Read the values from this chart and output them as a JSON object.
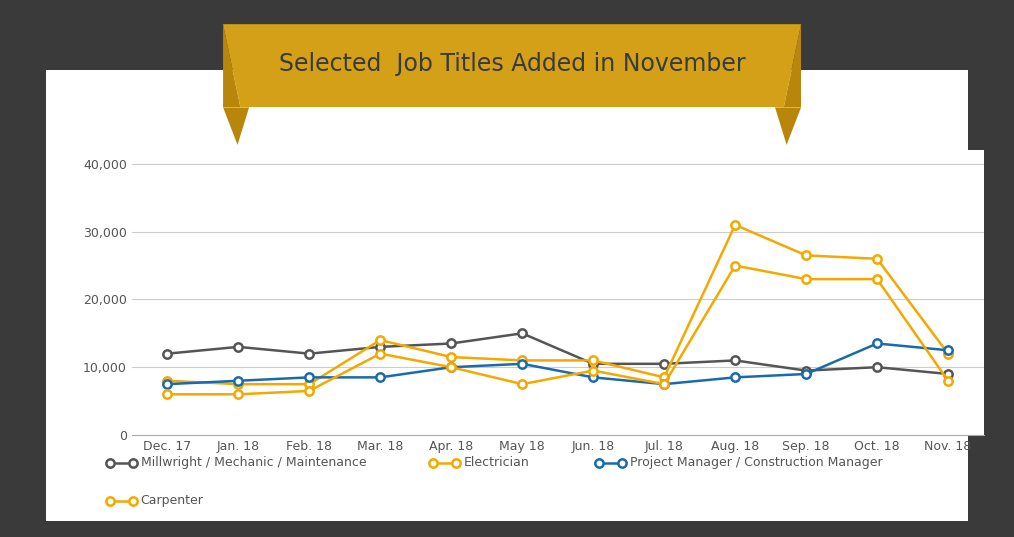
{
  "title": "Selected  Job Titles Added in November",
  "x_labels": [
    "Dec. 17",
    "Jan. 18",
    "Feb. 18",
    "Mar. 18",
    "Apr. 18",
    "May 18",
    "Jun. 18",
    "Jul. 18",
    "Aug. 18",
    "Sep. 18",
    "Oct. 18",
    "Nov. 18"
  ],
  "series": [
    {
      "name": "Millwright / Mechanic / Maintenance",
      "color": "#555555",
      "values": [
        12000,
        13000,
        12000,
        13000,
        13500,
        15000,
        10500,
        10500,
        11000,
        9500,
        10000,
        9000
      ]
    },
    {
      "name": "Electrician",
      "color": "#F5A800",
      "values": [
        8000,
        7500,
        7500,
        14000,
        11500,
        11000,
        11000,
        8500,
        31000,
        26500,
        26000,
        12000
      ]
    },
    {
      "name": "Project Manager / Construction Manager",
      "color": "#1A6BAA",
      "values": [
        7500,
        8000,
        8500,
        8500,
        10000,
        10500,
        8500,
        7500,
        8500,
        9000,
        13500,
        12500
      ]
    },
    {
      "name": "Carpenter",
      "color": "#F5A800",
      "values": [
        6000,
        6000,
        6500,
        12000,
        10000,
        7500,
        9500,
        7500,
        25000,
        23000,
        23000,
        8000
      ]
    }
  ],
  "ylim": [
    0,
    42000
  ],
  "yticks": [
    0,
    10000,
    20000,
    30000,
    40000
  ],
  "background_outer": "#3a3a3a",
  "background_chart": "#ffffff",
  "banner_color": "#D4A017",
  "banner_dark": "#B8860B",
  "banner_text_color": "#3a3a3a",
  "title_fontsize": 17,
  "legend_fontsize": 9,
  "tick_fontsize": 9
}
